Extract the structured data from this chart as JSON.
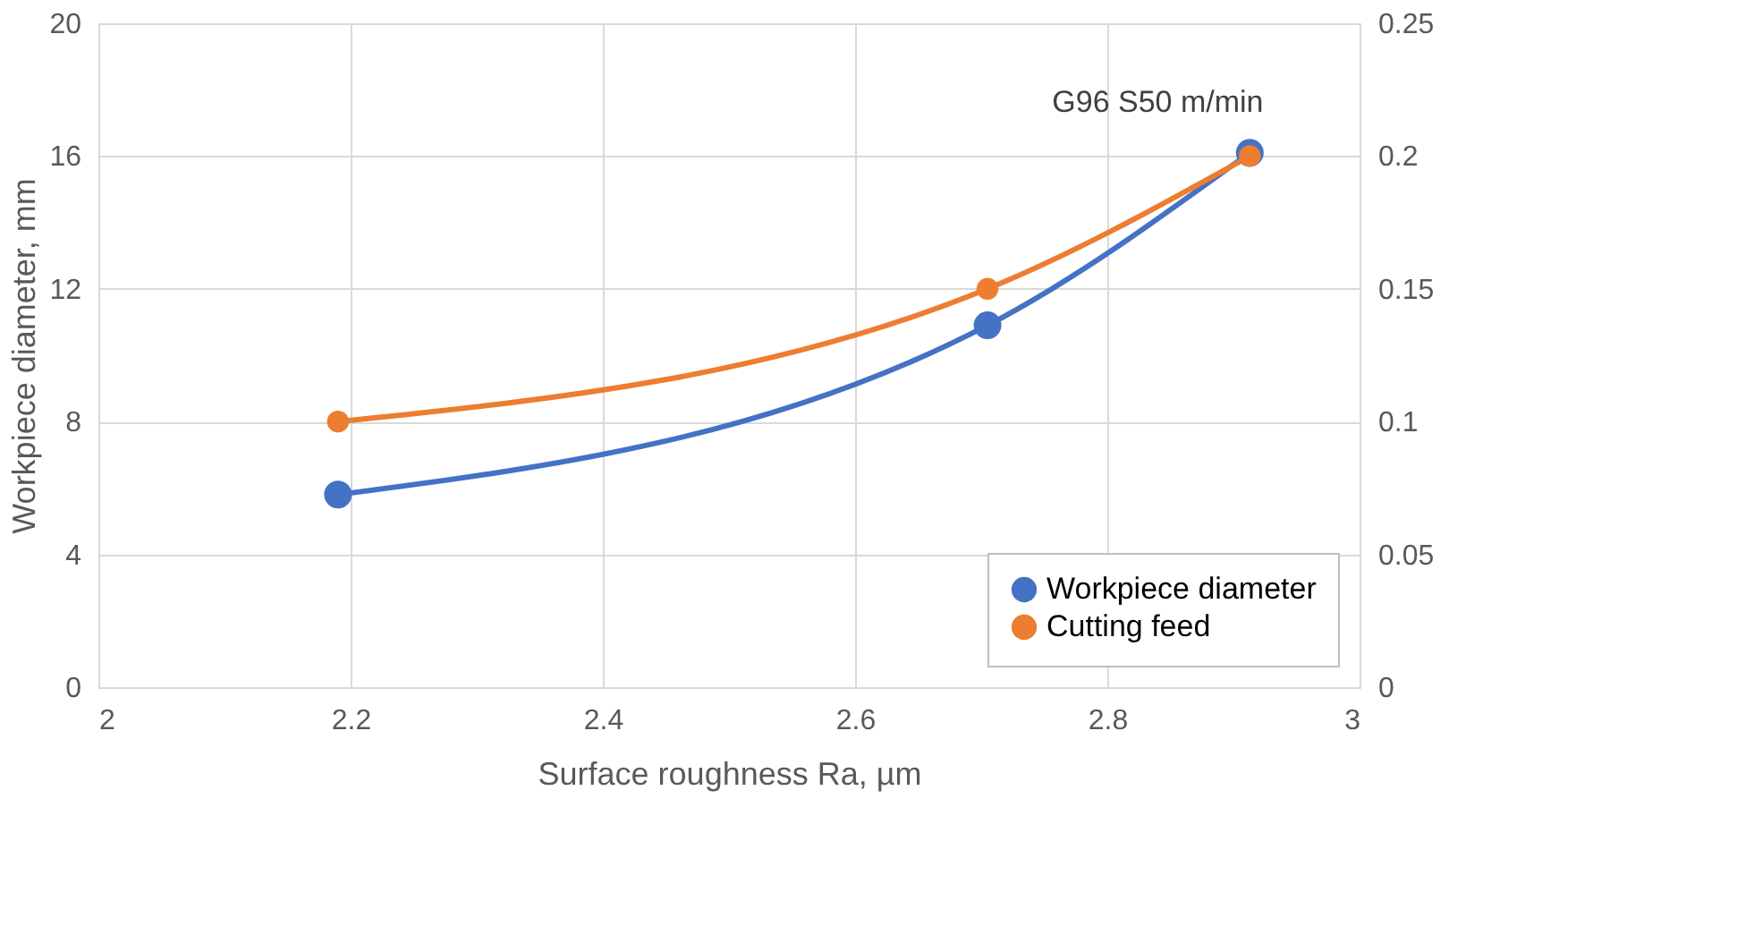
{
  "chart_data": {
    "type": "line",
    "xlabel": "Surface roughness Ra, µm",
    "ylabel": "Workpiece diameter, mm",
    "xlim": [
      2,
      3
    ],
    "xticks": [
      2,
      2.2,
      2.4,
      2.6,
      2.8,
      3
    ],
    "ylim": [
      0,
      20
    ],
    "yticks": [
      0,
      4,
      8,
      12,
      16,
      20
    ],
    "y2lim": [
      0,
      0.25
    ],
    "y2ticks": [
      0,
      0.05,
      0.1,
      0.15,
      0.2,
      0.25
    ],
    "x": [
      2.19,
      2.705,
      2.913
    ],
    "series": [
      {
        "name": "Workpiece diameter",
        "color": "#4472c4",
        "values": [
          5.8,
          10.9,
          16.1
        ]
      },
      {
        "name": "Cutting feed",
        "color": "#ed7d31",
        "values": [
          0.1,
          0.15,
          0.2
        ],
        "axis": "y2"
      }
    ],
    "annotations": [
      "G96 S50 m/min"
    ],
    "grid": true,
    "legend": "bottom right",
    "marker": "circle",
    "line_style": "solid"
  }
}
